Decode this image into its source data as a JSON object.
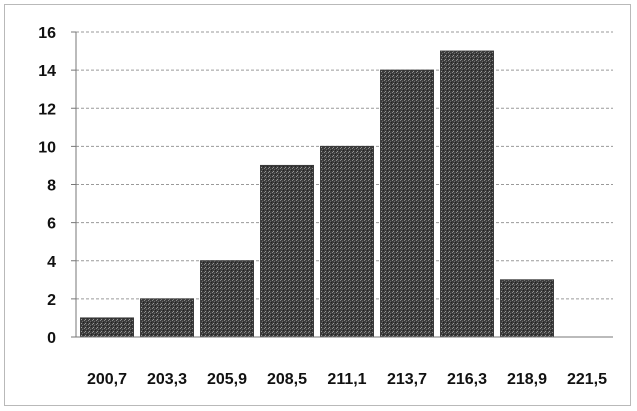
{
  "chart_data": {
    "type": "bar",
    "categories": [
      "200,7",
      "203,3",
      "205,9",
      "208,5",
      "211,1",
      "213,7",
      "216,3",
      "218,9",
      "221,5"
    ],
    "values": [
      1,
      2,
      4,
      9,
      10,
      14,
      15,
      3,
      0
    ],
    "title": "",
    "xlabel": "",
    "ylabel": "",
    "ylim": [
      0,
      16
    ],
    "yticks": [
      "0",
      "2",
      "4",
      "6",
      "8",
      "10",
      "12",
      "14",
      "16"
    ],
    "grid": true,
    "legend": "none",
    "bar_color": "#3a3a3a",
    "grid_color": "#9a9a9a",
    "axis_color": "#777777"
  }
}
